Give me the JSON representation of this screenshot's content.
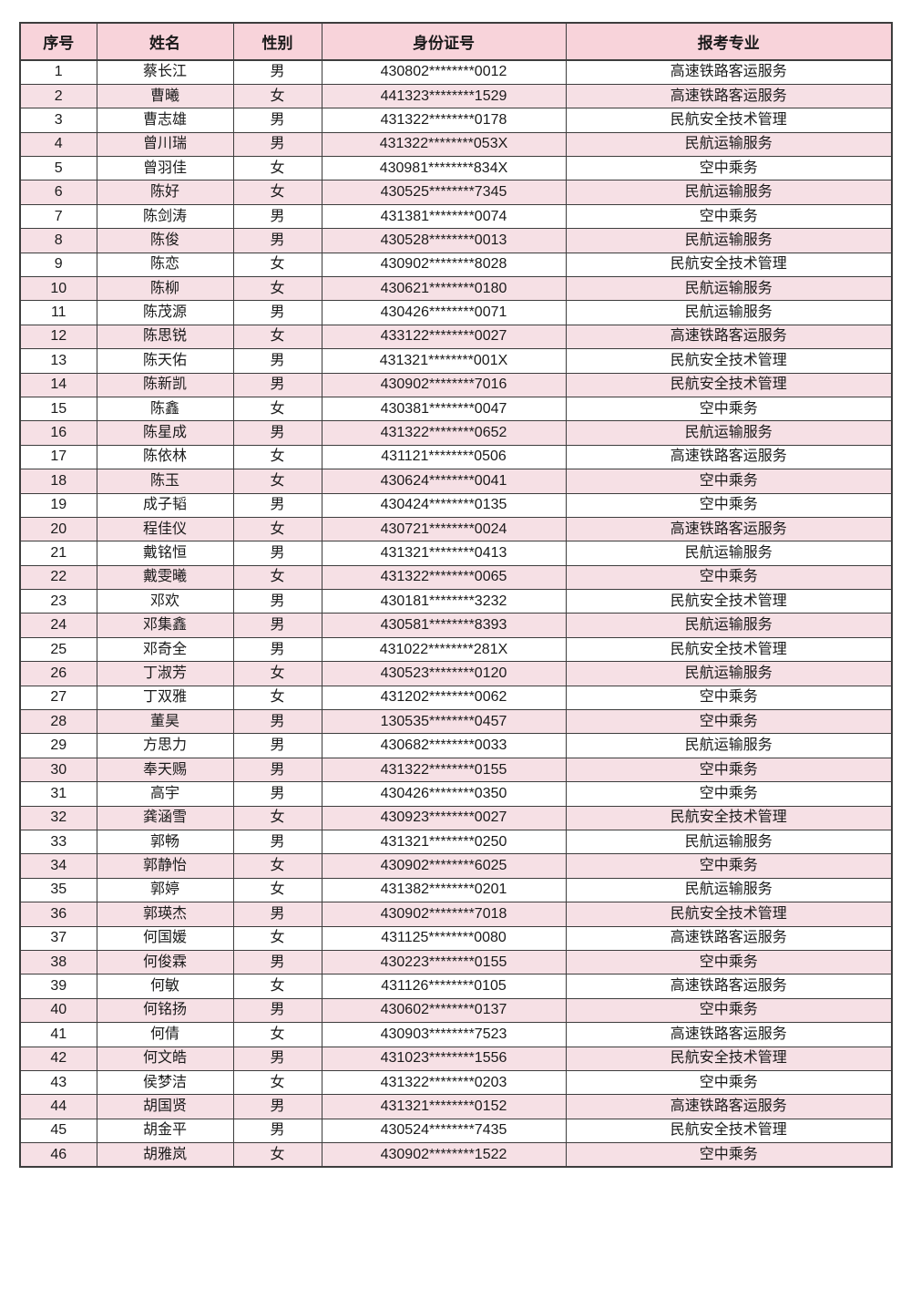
{
  "table": {
    "colors": {
      "header_bg": "#F8D3DA",
      "stripe_bg": "#F6E0E5",
      "row_bg": "#FFFFFF",
      "border": "#3D3D3D",
      "text": "#1A1A1A"
    },
    "columns": [
      {
        "key": "no",
        "label": "序号"
      },
      {
        "key": "name",
        "label": "姓名"
      },
      {
        "key": "gender",
        "label": "性别"
      },
      {
        "key": "id",
        "label": "身份证号"
      },
      {
        "key": "major",
        "label": "报考专业"
      }
    ],
    "rows": [
      [
        "1",
        "蔡长江",
        "男",
        "430802********0012",
        "高速铁路客运服务"
      ],
      [
        "2",
        "曹曦",
        "女",
        "441323********1529",
        "高速铁路客运服务"
      ],
      [
        "3",
        "曹志雄",
        "男",
        "431322********0178",
        "民航安全技术管理"
      ],
      [
        "4",
        "曾川瑞",
        "男",
        "431322********053X",
        "民航运输服务"
      ],
      [
        "5",
        "曾羽佳",
        "女",
        "430981********834X",
        "空中乘务"
      ],
      [
        "6",
        "陈好",
        "女",
        "430525********7345",
        "民航运输服务"
      ],
      [
        "7",
        "陈剑涛",
        "男",
        "431381********0074",
        "空中乘务"
      ],
      [
        "8",
        "陈俊",
        "男",
        "430528********0013",
        "民航运输服务"
      ],
      [
        "9",
        "陈恋",
        "女",
        "430902********8028",
        "民航安全技术管理"
      ],
      [
        "10",
        "陈柳",
        "女",
        "430621********0180",
        "民航运输服务"
      ],
      [
        "11",
        "陈茂源",
        "男",
        "430426********0071",
        "民航运输服务"
      ],
      [
        "12",
        "陈思锐",
        "女",
        "433122********0027",
        "高速铁路客运服务"
      ],
      [
        "13",
        "陈天佑",
        "男",
        "431321********001X",
        "民航安全技术管理"
      ],
      [
        "14",
        "陈新凯",
        "男",
        "430902********7016",
        "民航安全技术管理"
      ],
      [
        "15",
        "陈鑫",
        "女",
        "430381********0047",
        "空中乘务"
      ],
      [
        "16",
        "陈星成",
        "男",
        "431322********0652",
        "民航运输服务"
      ],
      [
        "17",
        "陈依林",
        "女",
        "431121********0506",
        "高速铁路客运服务"
      ],
      [
        "18",
        "陈玉",
        "女",
        "430624********0041",
        "空中乘务"
      ],
      [
        "19",
        "成子韬",
        "男",
        "430424********0135",
        "空中乘务"
      ],
      [
        "20",
        "程佳仪",
        "女",
        "430721********0024",
        "高速铁路客运服务"
      ],
      [
        "21",
        "戴铭恒",
        "男",
        "431321********0413",
        "民航运输服务"
      ],
      [
        "22",
        "戴雯曦",
        "女",
        "431322********0065",
        "空中乘务"
      ],
      [
        "23",
        "邓欢",
        "男",
        "430181********3232",
        "民航安全技术管理"
      ],
      [
        "24",
        "邓集鑫",
        "男",
        "430581********8393",
        "民航运输服务"
      ],
      [
        "25",
        "邓奇全",
        "男",
        "431022********281X",
        "民航安全技术管理"
      ],
      [
        "26",
        "丁淑芳",
        "女",
        "430523********0120",
        "民航运输服务"
      ],
      [
        "27",
        "丁双雅",
        "女",
        "431202********0062",
        "空中乘务"
      ],
      [
        "28",
        "董昊",
        "男",
        "130535********0457",
        "空中乘务"
      ],
      [
        "29",
        "方思力",
        "男",
        "430682********0033",
        "民航运输服务"
      ],
      [
        "30",
        "奉天赐",
        "男",
        "431322********0155",
        "空中乘务"
      ],
      [
        "31",
        "高宇",
        "男",
        "430426********0350",
        "空中乘务"
      ],
      [
        "32",
        "龚涵雪",
        "女",
        "430923********0027",
        "民航安全技术管理"
      ],
      [
        "33",
        "郭畅",
        "男",
        "431321********0250",
        "民航运输服务"
      ],
      [
        "34",
        "郭静怡",
        "女",
        "430902********6025",
        "空中乘务"
      ],
      [
        "35",
        "郭婷",
        "女",
        "431382********0201",
        "民航运输服务"
      ],
      [
        "36",
        "郭瑛杰",
        "男",
        "430902********7018",
        "民航安全技术管理"
      ],
      [
        "37",
        "何国媛",
        "女",
        "431125********0080",
        "高速铁路客运服务"
      ],
      [
        "38",
        "何俊霖",
        "男",
        "430223********0155",
        "空中乘务"
      ],
      [
        "39",
        "何敏",
        "女",
        "431126********0105",
        "高速铁路客运服务"
      ],
      [
        "40",
        "何铭扬",
        "男",
        "430602********0137",
        "空中乘务"
      ],
      [
        "41",
        "何倩",
        "女",
        "430903********7523",
        "高速铁路客运服务"
      ],
      [
        "42",
        "何文皓",
        "男",
        "431023********1556",
        "民航安全技术管理"
      ],
      [
        "43",
        "侯梦洁",
        "女",
        "431322********0203",
        "空中乘务"
      ],
      [
        "44",
        "胡国贤",
        "男",
        "431321********0152",
        "高速铁路客运服务"
      ],
      [
        "45",
        "胡金平",
        "男",
        "430524********7435",
        "民航安全技术管理"
      ],
      [
        "46",
        "胡雅岚",
        "女",
        "430902********1522",
        "空中乘务"
      ]
    ]
  }
}
